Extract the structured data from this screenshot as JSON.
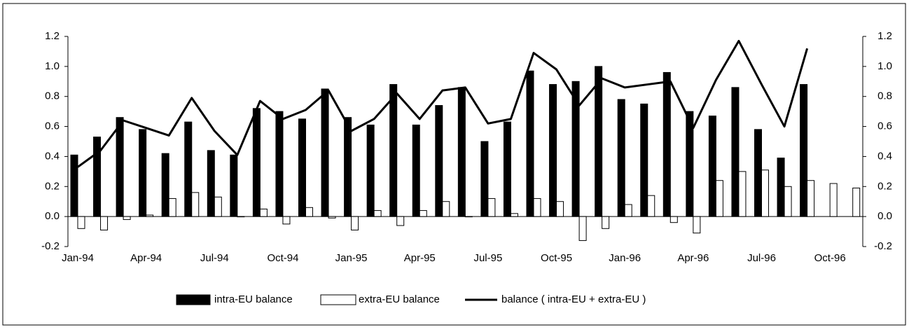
{
  "chart_data": {
    "type": "bar_line",
    "categories": [
      "Jan-94",
      null,
      null,
      "Apr-94",
      null,
      null,
      "Jul-94",
      null,
      null,
      "Oct-94",
      null,
      null,
      "Jan-95",
      null,
      null,
      "Apr-95",
      null,
      null,
      "Jul-95",
      null,
      null,
      "Oct-95",
      null,
      null,
      "Jan-96",
      null,
      null,
      "Apr-96",
      null,
      null,
      "Jul-96",
      null,
      null,
      "Oct-96",
      null
    ],
    "series": [
      {
        "name": "intra-EU balance",
        "kind": "bar",
        "color": "#000000",
        "values": [
          0.41,
          0.53,
          0.66,
          0.58,
          0.42,
          0.63,
          0.44,
          0.41,
          0.72,
          0.7,
          0.65,
          0.85,
          0.66,
          0.61,
          0.88,
          0.61,
          0.74,
          0.86,
          0.5,
          0.63,
          0.97,
          0.88,
          0.9,
          1.0,
          0.78,
          0.75,
          0.96,
          0.7,
          0.67,
          0.86,
          0.58,
          0.39,
          0.88,
          null,
          null
        ]
      },
      {
        "name": "extra-EU balance",
        "kind": "bar",
        "color": "#ffffff",
        "values": [
          -0.08,
          -0.09,
          -0.02,
          0.01,
          0.12,
          0.16,
          0.13,
          0.0,
          0.05,
          -0.05,
          0.06,
          -0.01,
          -0.09,
          0.04,
          -0.06,
          0.04,
          0.1,
          0.0,
          0.12,
          0.02,
          0.12,
          0.1,
          -0.16,
          -0.08,
          0.08,
          0.14,
          -0.04,
          -0.11,
          0.24,
          0.3,
          0.31,
          0.2,
          0.24,
          0.22,
          0.19
        ]
      },
      {
        "name": "balance ( intra-EU + extra-EU )",
        "kind": "line",
        "color": "#000000",
        "values": [
          0.33,
          0.44,
          0.64,
          0.59,
          0.54,
          0.79,
          0.57,
          0.41,
          0.77,
          0.65,
          0.71,
          0.84,
          0.57,
          0.65,
          0.82,
          0.65,
          0.84,
          0.86,
          0.62,
          0.65,
          1.09,
          0.98,
          0.74,
          0.92,
          0.86,
          0.88,
          0.9,
          0.59,
          0.91,
          1.17,
          0.88,
          0.6,
          1.12,
          null,
          null
        ]
      }
    ],
    "ylim": [
      -0.2,
      1.2
    ],
    "yticks": [
      -0.2,
      {
        "value": 0,
        "label": "0.0"
      },
      0.2,
      0.4,
      0.6,
      0.8,
      {
        "value": 1,
        "label": "1.0"
      },
      1.2
    ],
    "y2lim": [
      -0.2,
      1.2
    ],
    "y2ticks": [
      -0.2,
      {
        "value": 0,
        "label": "0.0"
      },
      0.2,
      0.4,
      0.6,
      0.8,
      {
        "value": 1,
        "label": "1.0"
      },
      1.2
    ],
    "legend": "bottom",
    "grid": false
  }
}
